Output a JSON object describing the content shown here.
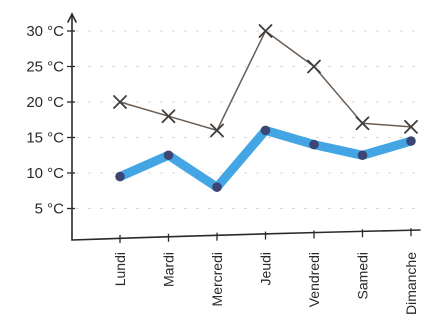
{
  "chart_data": {
    "type": "line",
    "title": "",
    "xlabel": "",
    "ylabel": "",
    "categories": [
      "Lundi",
      "Mardi",
      "Mercredi",
      "Jeudi",
      "Vendredi",
      "Samedi",
      "Dimanche"
    ],
    "y_ticks": [
      {
        "value": 5,
        "label": "5 °C"
      },
      {
        "value": 10,
        "label": "10 °C"
      },
      {
        "value": 15,
        "label": "15 °C"
      },
      {
        "value": 20,
        "label": "20 °C"
      },
      {
        "value": 25,
        "label": "25 °C"
      },
      {
        "value": 30,
        "label": "30 °C"
      }
    ],
    "ylim": [
      0,
      32
    ],
    "grid": false,
    "legend": "none",
    "series": [
      {
        "marker": "cross",
        "color": "#6b5d52",
        "marker_color": "#3d3d3d",
        "values": [
          20,
          18,
          16,
          30,
          25,
          17,
          16.5
        ]
      },
      {
        "marker": "dot",
        "color": "#2f9be0",
        "marker_color": "#3a3560",
        "values": [
          9.5,
          12.5,
          8,
          16,
          14,
          12.5,
          14.5
        ]
      }
    ]
  }
}
